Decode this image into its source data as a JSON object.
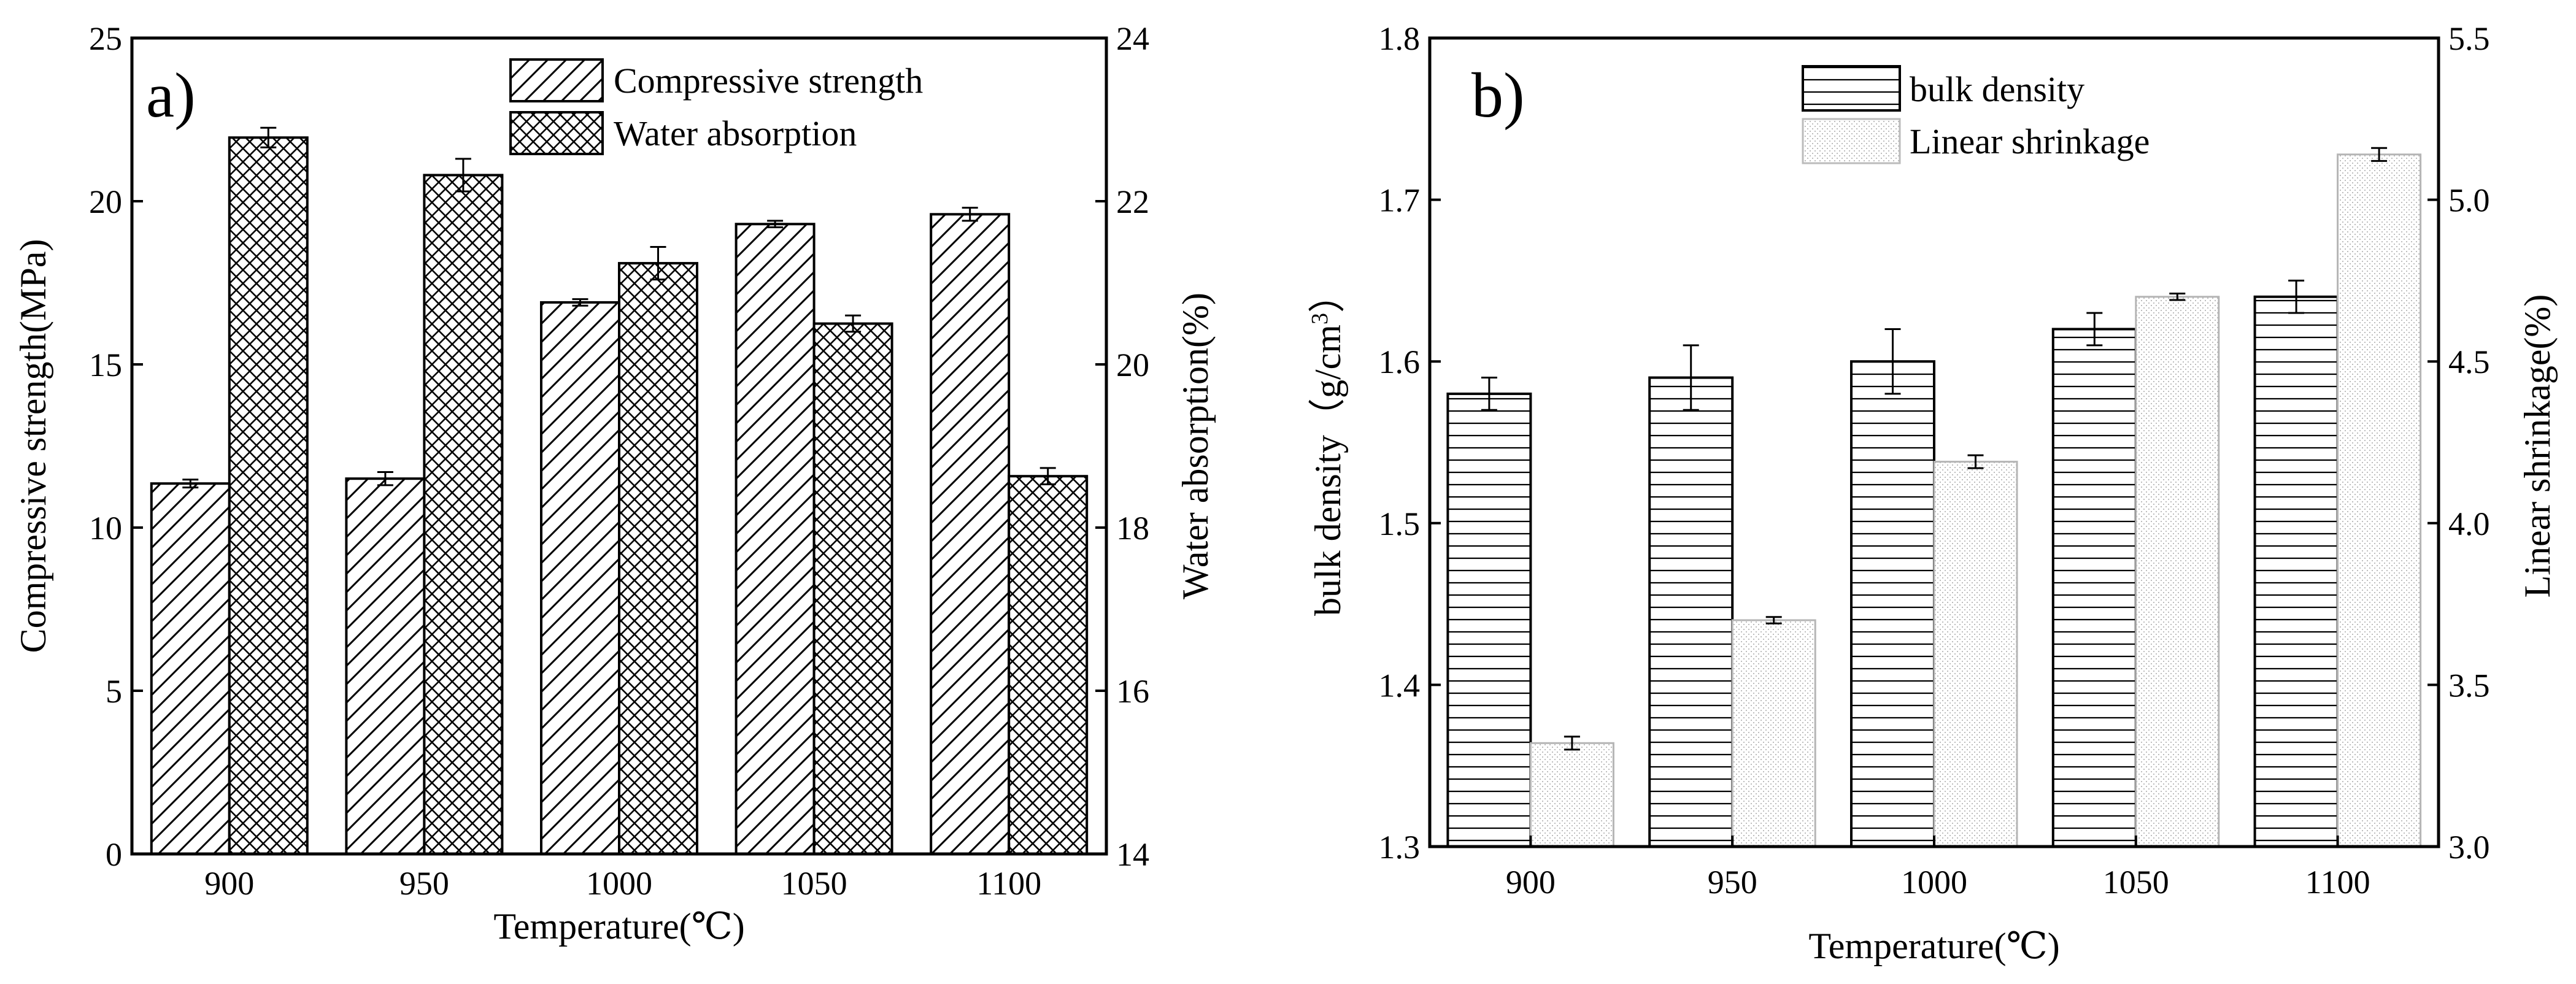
{
  "chart_data": [
    {
      "type": "bar",
      "panel_label": "a)",
      "categories": [
        "900",
        "950",
        "1000",
        "1050",
        "1100"
      ],
      "xlabel": "Temperature(℃)",
      "ylabel": "Compressive strength(MPa)",
      "ylabel2": "Water absorption(%)",
      "ylim": [
        0,
        25
      ],
      "ylim2": [
        14,
        24
      ],
      "yticks": [
        "0",
        "5",
        "10",
        "15",
        "20",
        "25"
      ],
      "yticks2": [
        "14",
        "16",
        "18",
        "20",
        "22",
        "24"
      ],
      "legend_position": "top-center",
      "series": [
        {
          "name": "Compressive strength",
          "axis": "left",
          "pattern": "diagonal-hatch",
          "values": [
            11.35,
            11.5,
            16.9,
            19.3,
            19.6
          ],
          "errors": [
            0.12,
            0.2,
            0.1,
            0.1,
            0.2
          ]
        },
        {
          "name": "Water absorption",
          "axis": "right",
          "pattern": "cross-hatch",
          "values": [
            22.78,
            22.32,
            21.24,
            20.5,
            18.63
          ],
          "errors": [
            0.12,
            0.2,
            0.2,
            0.1,
            0.1
          ]
        }
      ]
    },
    {
      "type": "bar",
      "panel_label": "b)",
      "categories": [
        "900",
        "950",
        "1000",
        "1050",
        "1100"
      ],
      "xlabel": "Temperature(℃)",
      "ylabel": "bulk density（g/cm3）",
      "ylabel_parts": {
        "main": "bulk density（g/cm",
        "sup": "3",
        "end": "）"
      },
      "ylabel2": "Linear shrinkage(%)",
      "ylim": [
        1.3,
        1.8
      ],
      "ylim2": [
        3.0,
        5.5
      ],
      "yticks": [
        "1.3",
        "1.4",
        "1.5",
        "1.6",
        "1.7",
        "1.8"
      ],
      "yticks2": [
        "3.0",
        "3.5",
        "4.0",
        "4.5",
        "5.0",
        "5.5"
      ],
      "legend_position": "top-center",
      "series": [
        {
          "name": "bulk density",
          "axis": "left",
          "pattern": "horizontal-lines",
          "values": [
            1.58,
            1.59,
            1.6,
            1.62,
            1.64
          ],
          "errors": [
            0.01,
            0.02,
            0.02,
            0.01,
            0.01
          ]
        },
        {
          "name": "Linear shrinkage",
          "axis": "right",
          "pattern": "dots",
          "values": [
            3.32,
            3.7,
            4.19,
            4.7,
            5.14
          ],
          "errors": [
            0.02,
            0.01,
            0.02,
            0.01,
            0.02
          ]
        }
      ]
    }
  ]
}
